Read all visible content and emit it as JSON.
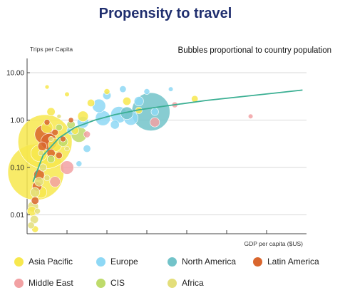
{
  "chart_data": {
    "type": "scatter",
    "title": "Propensity to travel",
    "subtitle": "Bubbles proportional to country population",
    "ylabel": "Trips per Capita",
    "xlabel": "GDP per capita ($US)",
    "yscale": "log",
    "ylim": [
      0.004,
      20
    ],
    "xlim": [
      0,
      70
    ],
    "y_ticks": [
      {
        "value": 10,
        "label": "10.00"
      },
      {
        "value": 1,
        "label": "1.00"
      },
      {
        "value": 0.1,
        "label": "0.10"
      },
      {
        "value": 0.01,
        "label": "0.01"
      }
    ],
    "x_ticks": [
      10,
      20,
      30,
      40,
      50,
      60
    ],
    "grid": true,
    "legend": {
      "position": "bottom",
      "entries": [
        {
          "name": "Asia Pacific",
          "color": "#F7E84E"
        },
        {
          "name": "Europe",
          "color": "#8ED8F5"
        },
        {
          "name": "North America",
          "color": "#72C3C9"
        },
        {
          "name": "Latin America",
          "color": "#D9662E"
        },
        {
          "name": "Middle East",
          "color": "#F2A1A3"
        },
        {
          "name": "CIS",
          "color": "#BEDB6B"
        },
        {
          "name": "Africa",
          "color": "#E3DE7A"
        }
      ]
    },
    "trend_line": {
      "color": "#3BAF93",
      "points": [
        [
          1.5,
          0.05
        ],
        [
          4,
          0.18
        ],
        [
          8,
          0.42
        ],
        [
          12,
          0.7
        ],
        [
          17,
          1.0
        ],
        [
          22,
          1.3
        ],
        [
          28,
          1.65
        ],
        [
          35,
          2.0
        ],
        [
          45,
          2.6
        ],
        [
          55,
          3.2
        ],
        [
          69,
          4.3
        ]
      ]
    },
    "series": [
      {
        "name": "Asia Pacific",
        "color": "#F7E84E",
        "points": [
          {
            "x": 2.2,
            "y": 0.08,
            "size": 1400
          },
          {
            "x": 4.5,
            "y": 0.35,
            "size": 1300
          },
          {
            "x": 3,
            "y": 0.2,
            "size": 120
          },
          {
            "x": 5,
            "y": 0.7,
            "size": 60
          },
          {
            "x": 7,
            "y": 0.3,
            "size": 80
          },
          {
            "x": 1.2,
            "y": 0.012,
            "size": 40
          },
          {
            "x": 2,
            "y": 0.005,
            "size": 20
          },
          {
            "x": 6,
            "y": 1.5,
            "size": 30
          },
          {
            "x": 14,
            "y": 1.2,
            "size": 50
          },
          {
            "x": 16,
            "y": 2.3,
            "size": 25
          },
          {
            "x": 25,
            "y": 2.5,
            "size": 30
          },
          {
            "x": 20,
            "y": 4,
            "size": 15
          },
          {
            "x": 10,
            "y": 3.5,
            "size": 10
          },
          {
            "x": 5,
            "y": 5,
            "size": 8
          },
          {
            "x": 28,
            "y": 1.6,
            "size": 20
          },
          {
            "x": 12,
            "y": 0.6,
            "size": 25
          },
          {
            "x": 42,
            "y": 2.8,
            "size": 20
          },
          {
            "x": 3.5,
            "y": 0.03,
            "size": 60
          }
        ]
      },
      {
        "name": "Europe",
        "color": "#8ED8F5",
        "points": [
          {
            "x": 23,
            "y": 1.3,
            "size": 120
          },
          {
            "x": 19,
            "y": 1.1,
            "size": 100
          },
          {
            "x": 26,
            "y": 1.1,
            "size": 90
          },
          {
            "x": 18,
            "y": 2.0,
            "size": 80
          },
          {
            "x": 28,
            "y": 2.5,
            "size": 40
          },
          {
            "x": 14,
            "y": 0.9,
            "size": 60
          },
          {
            "x": 20,
            "y": 3.3,
            "size": 30
          },
          {
            "x": 24,
            "y": 4.5,
            "size": 20
          },
          {
            "x": 30,
            "y": 4,
            "size": 15
          },
          {
            "x": 36,
            "y": 4.5,
            "size": 10
          },
          {
            "x": 11,
            "y": 0.6,
            "size": 30
          },
          {
            "x": 15,
            "y": 0.25,
            "size": 25
          },
          {
            "x": 13,
            "y": 0.12,
            "size": 15
          },
          {
            "x": 32,
            "y": 1.5,
            "size": 25
          },
          {
            "x": 22,
            "y": 0.8,
            "size": 35
          }
        ]
      },
      {
        "name": "North America",
        "color": "#72C3C9",
        "points": [
          {
            "x": 31,
            "y": 1.5,
            "size": 650
          },
          {
            "x": 25,
            "y": 1.4,
            "size": 70
          }
        ]
      },
      {
        "name": "Latin America",
        "color": "#D9662E",
        "points": [
          {
            "x": 4.3,
            "y": 0.5,
            "size": 160
          },
          {
            "x": 5.5,
            "y": 0.35,
            "size": 120
          },
          {
            "x": 3,
            "y": 0.07,
            "size": 50
          },
          {
            "x": 2.5,
            "y": 0.04,
            "size": 40
          },
          {
            "x": 6,
            "y": 0.2,
            "size": 30
          },
          {
            "x": 8,
            "y": 0.18,
            "size": 20
          },
          {
            "x": 3.8,
            "y": 0.28,
            "size": 35
          },
          {
            "x": 9,
            "y": 0.4,
            "size": 15
          },
          {
            "x": 7,
            "y": 0.55,
            "size": 18
          },
          {
            "x": 11,
            "y": 1.0,
            "size": 12
          },
          {
            "x": 2,
            "y": 0.02,
            "size": 25
          },
          {
            "x": 5,
            "y": 0.9,
            "size": 15
          }
        ]
      },
      {
        "name": "Middle East",
        "color": "#F2A1A3",
        "points": [
          {
            "x": 10,
            "y": 0.1,
            "size": 80
          },
          {
            "x": 7,
            "y": 0.05,
            "size": 50
          },
          {
            "x": 32,
            "y": 0.9,
            "size": 40
          },
          {
            "x": 37,
            "y": 2.1,
            "size": 15
          },
          {
            "x": 56,
            "y": 1.2,
            "size": 10
          },
          {
            "x": 15,
            "y": 0.5,
            "size": 20
          }
        ]
      },
      {
        "name": "CIS",
        "color": "#BEDB6B",
        "points": [
          {
            "x": 13,
            "y": 0.5,
            "size": 110
          },
          {
            "x": 9,
            "y": 0.35,
            "size": 40
          },
          {
            "x": 11,
            "y": 0.8,
            "size": 30
          },
          {
            "x": 6,
            "y": 0.15,
            "size": 25
          },
          {
            "x": 8,
            "y": 0.7,
            "size": 20
          }
        ]
      },
      {
        "name": "Africa",
        "color": "#E3DE7A",
        "points": [
          {
            "x": 1.5,
            "y": 0.015,
            "size": 50
          },
          {
            "x": 2,
            "y": 0.03,
            "size": 40
          },
          {
            "x": 1.8,
            "y": 0.008,
            "size": 30
          },
          {
            "x": 3,
            "y": 0.05,
            "size": 35
          },
          {
            "x": 4,
            "y": 0.1,
            "size": 25
          },
          {
            "x": 1,
            "y": 0.006,
            "size": 20
          },
          {
            "x": 2.6,
            "y": 0.012,
            "size": 15
          },
          {
            "x": 5,
            "y": 0.06,
            "size": 15
          },
          {
            "x": 6,
            "y": 0.4,
            "size": 12
          },
          {
            "x": 10,
            "y": 0.25,
            "size": 10
          },
          {
            "x": 8,
            "y": 1.2,
            "size": 8
          },
          {
            "x": 3.5,
            "y": 0.2,
            "size": 14
          }
        ]
      }
    ]
  }
}
